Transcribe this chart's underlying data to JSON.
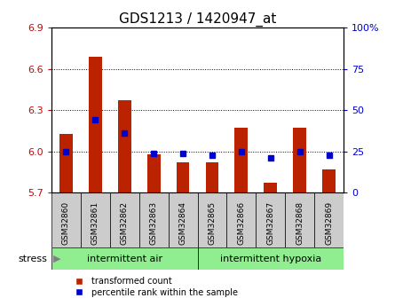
{
  "title": "GDS1213 / 1420947_at",
  "samples": [
    "GSM32860",
    "GSM32861",
    "GSM32862",
    "GSM32863",
    "GSM32864",
    "GSM32865",
    "GSM32866",
    "GSM32867",
    "GSM32868",
    "GSM32869"
  ],
  "transformed_count": [
    6.13,
    6.69,
    6.37,
    5.98,
    5.92,
    5.92,
    6.17,
    5.77,
    6.17,
    5.87
  ],
  "percentile_rank": [
    25,
    44,
    36,
    24,
    24,
    23,
    25,
    21,
    25,
    23
  ],
  "ylim_left": [
    5.7,
    6.9
  ],
  "ylim_right": [
    0,
    100
  ],
  "yticks_left": [
    5.7,
    6.0,
    6.3,
    6.6,
    6.9
  ],
  "yticks_right": [
    0,
    25,
    50,
    75,
    100
  ],
  "ytick_labels_right": [
    "0",
    "25",
    "50",
    "75",
    "100%"
  ],
  "bar_color": "#bb2200",
  "dot_color": "#0000cc",
  "bar_bottom": 5.7,
  "group1_label": "intermittent air",
  "group2_label": "intermittent hypoxia",
  "group1_indices": [
    0,
    1,
    2,
    3,
    4
  ],
  "group2_indices": [
    5,
    6,
    7,
    8,
    9
  ],
  "stress_label": "stress",
  "legend_bar_label": "transformed count",
  "legend_dot_label": "percentile rank within the sample",
  "group_bg_color": "#90ee90",
  "sample_box_color": "#cccccc",
  "title_fontsize": 11,
  "axis_label_color_left": "#cc0000",
  "axis_label_color_right": "#0000cc",
  "grid_color": "#000000",
  "bar_width": 0.45
}
